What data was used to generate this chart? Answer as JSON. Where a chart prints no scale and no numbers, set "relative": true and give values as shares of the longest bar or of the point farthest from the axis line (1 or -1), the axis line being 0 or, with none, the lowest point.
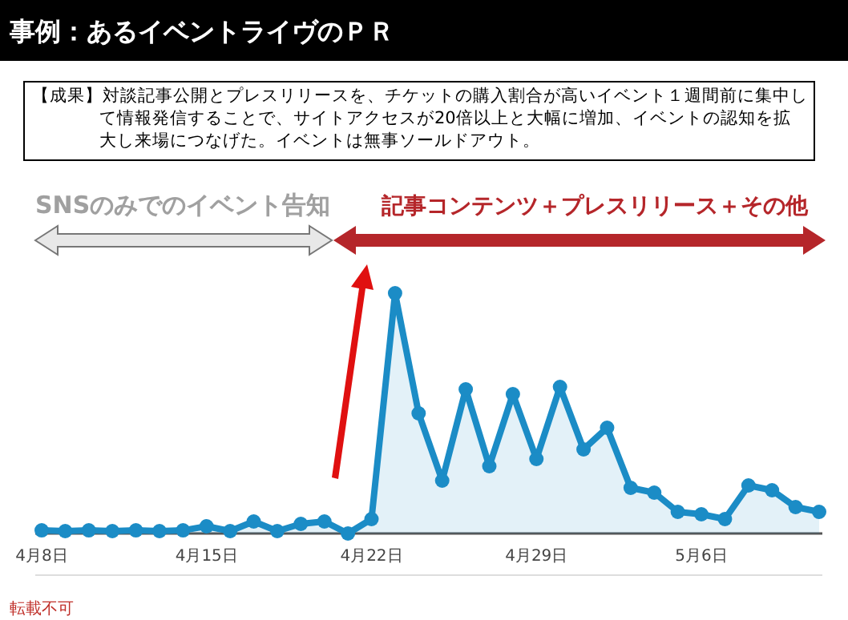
{
  "chart_data": {
    "type": "area",
    "title": "事例：あるイベントライヴのＰＲ",
    "annotations": [
      "【成果】対談記事公開とプレスリリースを、チケットの購入割合が高いイベント１週間前に集中して情報発信することで、サイトアクセスが20倍以上と大幅に増加、イベントの認知を拡大し来場につなげた。イベントは無事ソールドアウト。",
      "SNSのみでのイベント告知",
      "記事コンテンツ＋プレスリリース＋その他",
      "転載不可"
    ],
    "categories": [
      "4月8日",
      null,
      null,
      null,
      null,
      null,
      null,
      "4月15日",
      null,
      null,
      null,
      null,
      null,
      null,
      "4月22日",
      null,
      null,
      null,
      null,
      null,
      null,
      "4月29日",
      null,
      null,
      null,
      null,
      null,
      null,
      "5月6日",
      null,
      null,
      null,
      null,
      null
    ],
    "series": [
      {
        "color": "#1b8cc6",
        "values": [
          0.013,
          0.01,
          0.013,
          0.01,
          0.013,
          0.01,
          0.013,
          0.03,
          0.01,
          0.05,
          0.01,
          0.04,
          0.05,
          0.0,
          0.06,
          1.0,
          0.5,
          0.22,
          0.6,
          0.28,
          0.58,
          0.31,
          0.61,
          0.35,
          0.44,
          0.19,
          0.17,
          0.09,
          0.08,
          0.06,
          0.2,
          0.18,
          0.11,
          0.09
        ]
      }
    ],
    "relative": true,
    "marker": "circle"
  }
}
